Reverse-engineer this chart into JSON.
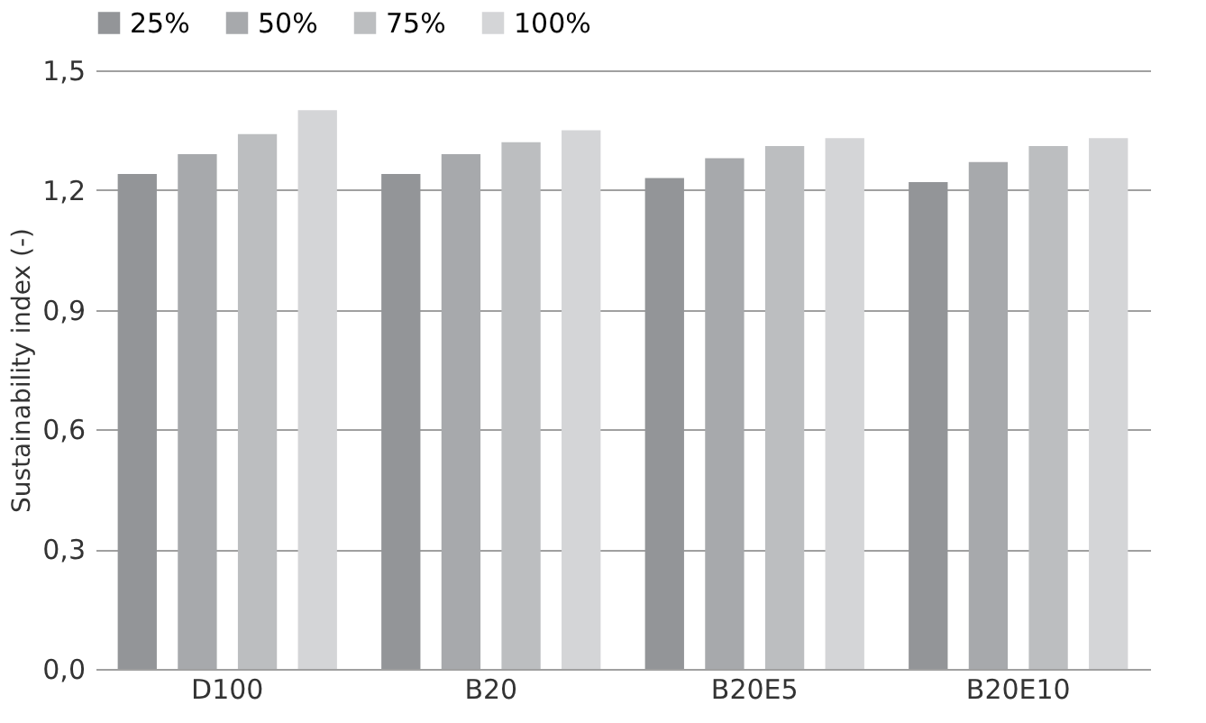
{
  "chart_data": {
    "type": "bar",
    "ylabel": "Sustainability index (-)",
    "categories": [
      "D100",
      "B20",
      "B20E5",
      "B20E10"
    ],
    "series": [
      {
        "name": "25%",
        "color": "#939598",
        "values": [
          1.24,
          1.24,
          1.23,
          1.22
        ]
      },
      {
        "name": "50%",
        "color": "#a7a9ac",
        "values": [
          1.29,
          1.29,
          1.28,
          1.27
        ]
      },
      {
        "name": "75%",
        "color": "#bcbec0",
        "values": [
          1.34,
          1.32,
          1.31,
          1.31
        ]
      },
      {
        "name": "100%",
        "color": "#d4d5d7",
        "values": [
          1.4,
          1.35,
          1.33,
          1.33
        ]
      }
    ],
    "ylim": [
      0,
      1.5
    ],
    "yticks": [
      {
        "value": 0,
        "label": "0,0"
      },
      {
        "value": 0.3,
        "label": "0,3"
      },
      {
        "value": 0.6,
        "label": "0,6"
      },
      {
        "value": 0.9,
        "label": "0,9"
      },
      {
        "value": 1.2,
        "label": "1,2"
      },
      {
        "value": 1.5,
        "label": "1,5"
      }
    ],
    "grid": "y",
    "legend": "top"
  }
}
